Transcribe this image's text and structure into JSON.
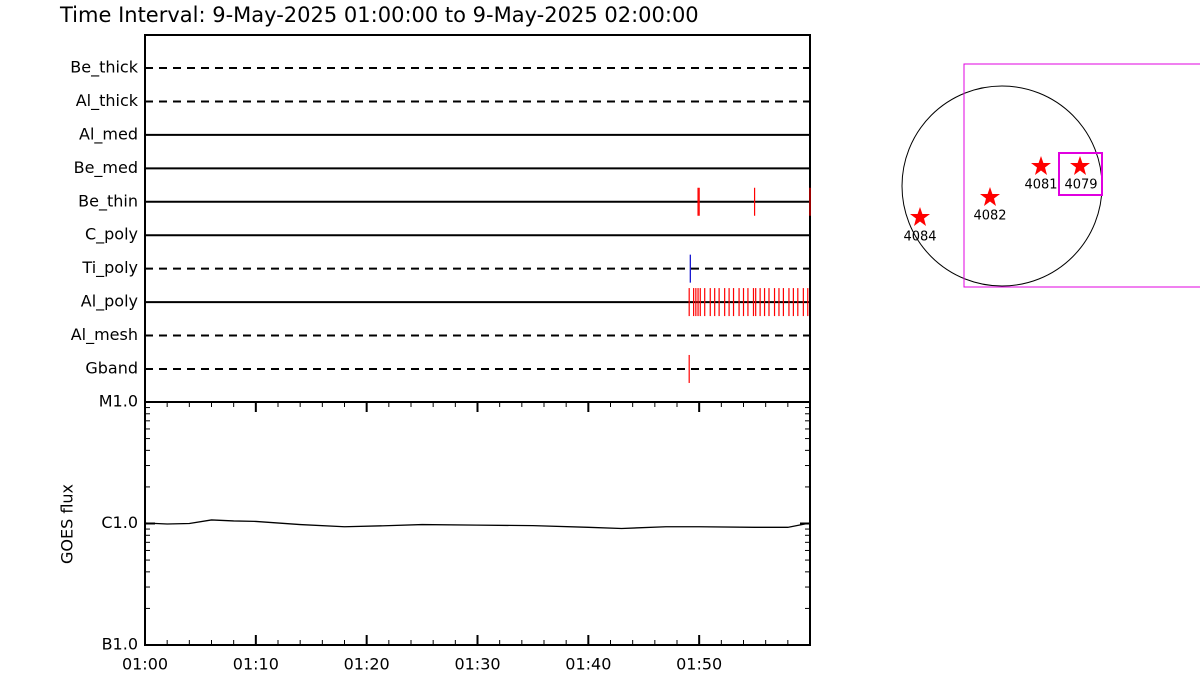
{
  "title": "Time Interval:  9-May-2025 01:00:00 to  9-May-2025 02:00:00",
  "chart_data": [
    {
      "type": "timeline",
      "categories": [
        "Be_thick",
        "Al_thick",
        "Al_med",
        "Be_med",
        "Be_thin",
        "C_poly",
        "Ti_poly",
        "Al_poly",
        "Al_mesh",
        "Gband"
      ],
      "line_styles": [
        "dashed",
        "dashed",
        "solid",
        "solid",
        "solid",
        "solid",
        "dashed",
        "solid",
        "dashed",
        "dashed"
      ],
      "event_colors": [
        "#ff0000",
        "#ff0000",
        "#ff0000",
        "#ff0000",
        "#ff0000",
        "#ff0000",
        "#0000cc",
        "#ff0000",
        "#ff0000",
        "#ff0000"
      ],
      "xlim": [
        0,
        60
      ],
      "events": [
        [],
        [],
        [],
        [],
        [
          49.9,
          50.0,
          55.0,
          60.0
        ],
        [],
        [
          49.2
        ],
        [
          49.1,
          49.5,
          49.7,
          49.9,
          50.1,
          50.5,
          51.0,
          51.4,
          51.8,
          52.3,
          52.7,
          53.1,
          53.6,
          54.0,
          54.4,
          54.9,
          55.1,
          55.5,
          55.9,
          56.3,
          56.8,
          57.2,
          57.6,
          58.1,
          58.5,
          58.9,
          59.4,
          59.8
        ],
        [],
        [
          49.1
        ]
      ]
    },
    {
      "type": "line",
      "y_label": "GOES flux",
      "log_scale": true,
      "color": "#000000",
      "xlim": [
        0,
        60
      ],
      "ylim": [
        1e-07,
        1e-05
      ],
      "xticks": [
        {
          "value": 0,
          "label": "01:00"
        },
        {
          "value": 10,
          "label": "01:10"
        },
        {
          "value": 20,
          "label": "01:20"
        },
        {
          "value": 30,
          "label": "01:30"
        },
        {
          "value": 40,
          "label": "01:40"
        },
        {
          "value": 50,
          "label": "01:50"
        }
      ],
      "yticks": [
        {
          "value": 1e-07,
          "label": "B1.0"
        },
        {
          "value": 1e-06,
          "label": "C1.0"
        },
        {
          "value": 1e-05,
          "label": "M1.0"
        }
      ],
      "x": [
        0,
        2,
        4,
        6,
        8,
        10,
        14,
        18,
        22,
        25,
        30,
        35,
        40,
        43,
        47,
        50,
        55,
        58,
        60
      ],
      "values": [
        1.01e-06,
        9.9e-07,
        1e-06,
        1.07e-06,
        1.05e-06,
        1.04e-06,
        9.8e-07,
        9.4e-07,
        9.6e-07,
        9.8e-07,
        9.7e-07,
        9.6e-07,
        9.3e-07,
        9.1e-07,
        9.4e-07,
        9.4e-07,
        9.3e-07,
        9.3e-07,
        1.01e-06
      ]
    }
  ],
  "map": {
    "regions": [
      "4084",
      "4082",
      "4081",
      "4079"
    ]
  }
}
